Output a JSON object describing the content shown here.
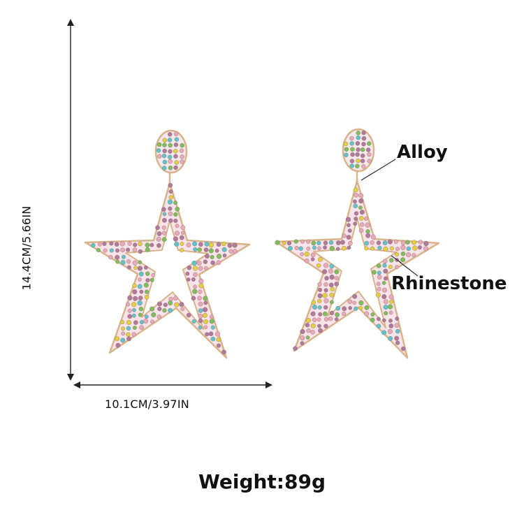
{
  "dimensions": {
    "width_label": "10.1CM/3.97IN",
    "height_label": "14.4CM/5.66IN"
  },
  "callouts": {
    "alloy": "Alloy",
    "rhinestone": "Rhinestone"
  },
  "weight_label": "Weight:89g",
  "colors": {
    "metal": "#d9b48a",
    "stone_pink": "#e8a9b8",
    "stone_mauve": "#b07a9c",
    "stone_yellow": "#e6cf3c",
    "stone_cyan": "#5cc4cf",
    "stone_green": "#7cbf5a"
  }
}
